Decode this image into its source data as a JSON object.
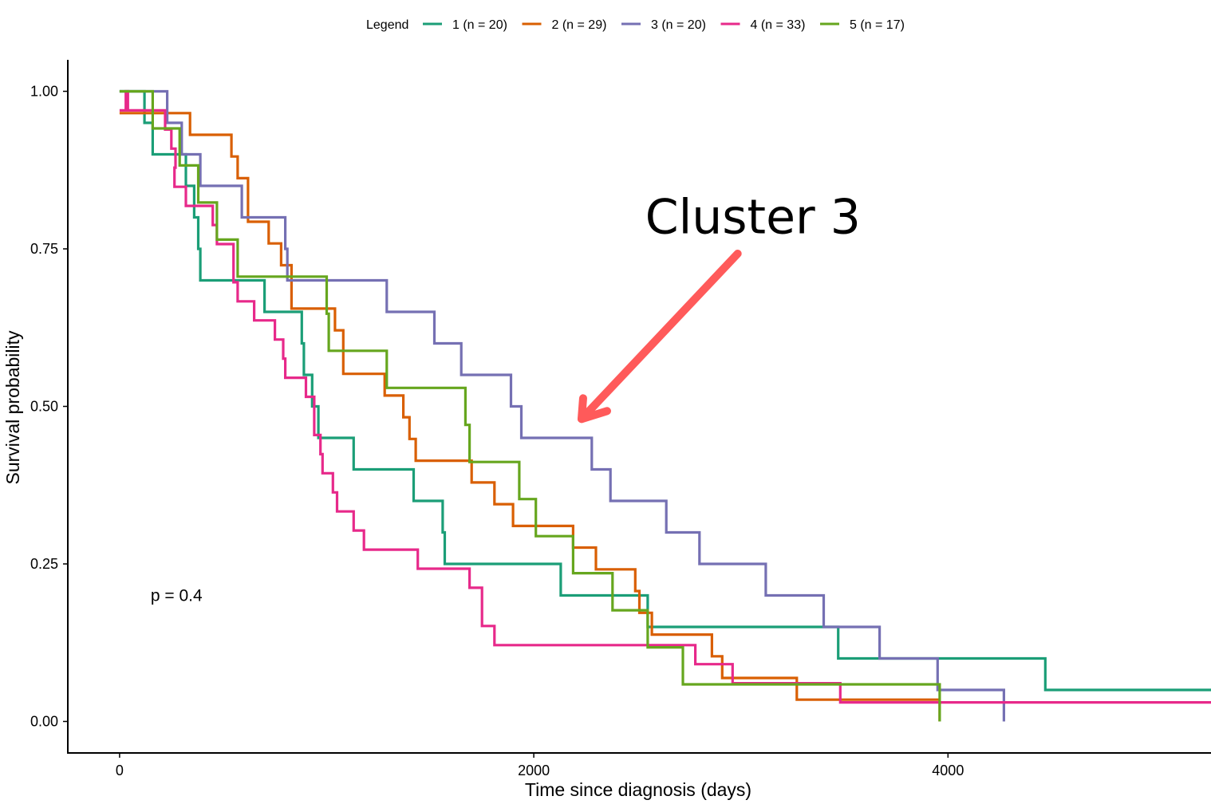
{
  "chart_data": {
    "type": "line",
    "subtype": "kaplan-meier step",
    "xlabel": "Time since diagnosis (days)",
    "ylabel": "Survival probability",
    "xlim": [
      -250,
      5270
    ],
    "ylim": [
      -0.05,
      1.05
    ],
    "x_ticks": [
      0,
      2000,
      4000
    ],
    "y_ticks": [
      0.0,
      0.25,
      0.5,
      0.75,
      1.0
    ],
    "y_tick_labels": [
      "0.00",
      "0.25",
      "0.50",
      "0.75",
      "1.00"
    ],
    "grid": false,
    "legend": {
      "title": "Legend",
      "placement": "top",
      "entries": [
        "1 (n = 20)",
        "2 (n = 29)",
        "3 (n = 20)",
        "4 (n = 33)",
        "5 (n = 17)"
      ]
    },
    "pvalue_label": "p = 0.4",
    "pvalue_pos": {
      "x": 150,
      "y": 0.2
    },
    "annotation": {
      "text": "Cluster 3",
      "arrow_color": "#ff5a5a",
      "text_pos": {
        "x": 3000,
        "y": 0.79
      },
      "arrow_from": {
        "x": 3000,
        "y": 0.75
      },
      "arrow_to": {
        "x": 2350,
        "y": 0.48
      }
    },
    "series": [
      {
        "name": "1 (n = 20)",
        "color": "#1b9e77",
        "points": [
          [
            0,
            1.0
          ],
          [
            120,
            0.95
          ],
          [
            160,
            0.9
          ],
          [
            320,
            0.85
          ],
          [
            360,
            0.8
          ],
          [
            380,
            0.75
          ],
          [
            390,
            0.7
          ],
          [
            700,
            0.65
          ],
          [
            880,
            0.6
          ],
          [
            890,
            0.55
          ],
          [
            930,
            0.5
          ],
          [
            960,
            0.45
          ],
          [
            1130,
            0.4
          ],
          [
            1420,
            0.35
          ],
          [
            1560,
            0.3
          ],
          [
            1570,
            0.25
          ],
          [
            2130,
            0.2
          ],
          [
            2550,
            0.15
          ],
          [
            3470,
            0.1
          ],
          [
            4470,
            0.05
          ],
          [
            5270,
            0.05
          ]
        ]
      },
      {
        "name": "2 (n = 29)",
        "color": "#d95f02",
        "points": [
          [
            0,
            0.9655
          ],
          [
            340,
            0.931
          ],
          [
            540,
            0.8966
          ],
          [
            570,
            0.8621
          ],
          [
            620,
            0.7931
          ],
          [
            720,
            0.7586
          ],
          [
            780,
            0.7241
          ],
          [
            830,
            0.6552
          ],
          [
            1040,
            0.6207
          ],
          [
            1080,
            0.5517
          ],
          [
            1280,
            0.5172
          ],
          [
            1370,
            0.4828
          ],
          [
            1400,
            0.4483
          ],
          [
            1430,
            0.4138
          ],
          [
            1700,
            0.3793
          ],
          [
            1810,
            0.3448
          ],
          [
            1900,
            0.3103
          ],
          [
            2190,
            0.2759
          ],
          [
            2300,
            0.2414
          ],
          [
            2490,
            0.2069
          ],
          [
            2510,
            0.1724
          ],
          [
            2570,
            0.1379
          ],
          [
            2860,
            0.1034
          ],
          [
            2910,
            0.069
          ],
          [
            3270,
            0.0345
          ],
          [
            3960,
            0.0
          ]
        ]
      },
      {
        "name": "3 (n = 20)",
        "color": "#7570b3",
        "points": [
          [
            0,
            1.0
          ],
          [
            230,
            0.95
          ],
          [
            300,
            0.9
          ],
          [
            390,
            0.85
          ],
          [
            590,
            0.8
          ],
          [
            800,
            0.75
          ],
          [
            810,
            0.7
          ],
          [
            1290,
            0.65
          ],
          [
            1520,
            0.6
          ],
          [
            1650,
            0.55
          ],
          [
            1890,
            0.5
          ],
          [
            1940,
            0.45
          ],
          [
            2280,
            0.4
          ],
          [
            2370,
            0.35
          ],
          [
            2640,
            0.3
          ],
          [
            2800,
            0.25
          ],
          [
            3120,
            0.2
          ],
          [
            3400,
            0.15
          ],
          [
            3670,
            0.1
          ],
          [
            3950,
            0.05
          ],
          [
            4270,
            0.0
          ]
        ]
      },
      {
        "name": "4 (n = 33)",
        "color": "#e7298a",
        "points": [
          [
            0,
            0.9697
          ],
          [
            30,
            1.0
          ],
          [
            40,
            0.9697
          ],
          [
            220,
            0.9394
          ],
          [
            250,
            0.9091
          ],
          [
            270,
            0.8788
          ],
          [
            265,
            0.8485
          ],
          [
            320,
            0.8182
          ],
          [
            450,
            0.7879
          ],
          [
            470,
            0.7576
          ],
          [
            550,
            0.697
          ],
          [
            570,
            0.6667
          ],
          [
            650,
            0.6364
          ],
          [
            750,
            0.6061
          ],
          [
            790,
            0.5758
          ],
          [
            800,
            0.5455
          ],
          [
            900,
            0.5152
          ],
          [
            940,
            0.4545
          ],
          [
            970,
            0.4242
          ],
          [
            980,
            0.3939
          ],
          [
            1030,
            0.3636
          ],
          [
            1050,
            0.3333
          ],
          [
            1130,
            0.303
          ],
          [
            1180,
            0.2727
          ],
          [
            1440,
            0.2424
          ],
          [
            1690,
            0.2121
          ],
          [
            1750,
            0.1515
          ],
          [
            1810,
            0.1212
          ],
          [
            2780,
            0.0909
          ],
          [
            2960,
            0.0606
          ],
          [
            3480,
            0.0303
          ],
          [
            5270,
            0.0303
          ]
        ]
      },
      {
        "name": "5 (n = 17)",
        "color": "#66a61e",
        "points": [
          [
            0,
            1.0
          ],
          [
            160,
            0.9412
          ],
          [
            290,
            0.8824
          ],
          [
            380,
            0.8235
          ],
          [
            470,
            0.7647
          ],
          [
            570,
            0.7059
          ],
          [
            1000,
            0.6471
          ],
          [
            1010,
            0.5882
          ],
          [
            1290,
            0.5294
          ],
          [
            1670,
            0.4706
          ],
          [
            1690,
            0.4118
          ],
          [
            1930,
            0.3529
          ],
          [
            2010,
            0.2941
          ],
          [
            2190,
            0.2353
          ],
          [
            2380,
            0.1765
          ],
          [
            2550,
            0.1176
          ],
          [
            2720,
            0.0588
          ],
          [
            3960,
            0.0
          ]
        ]
      }
    ]
  }
}
